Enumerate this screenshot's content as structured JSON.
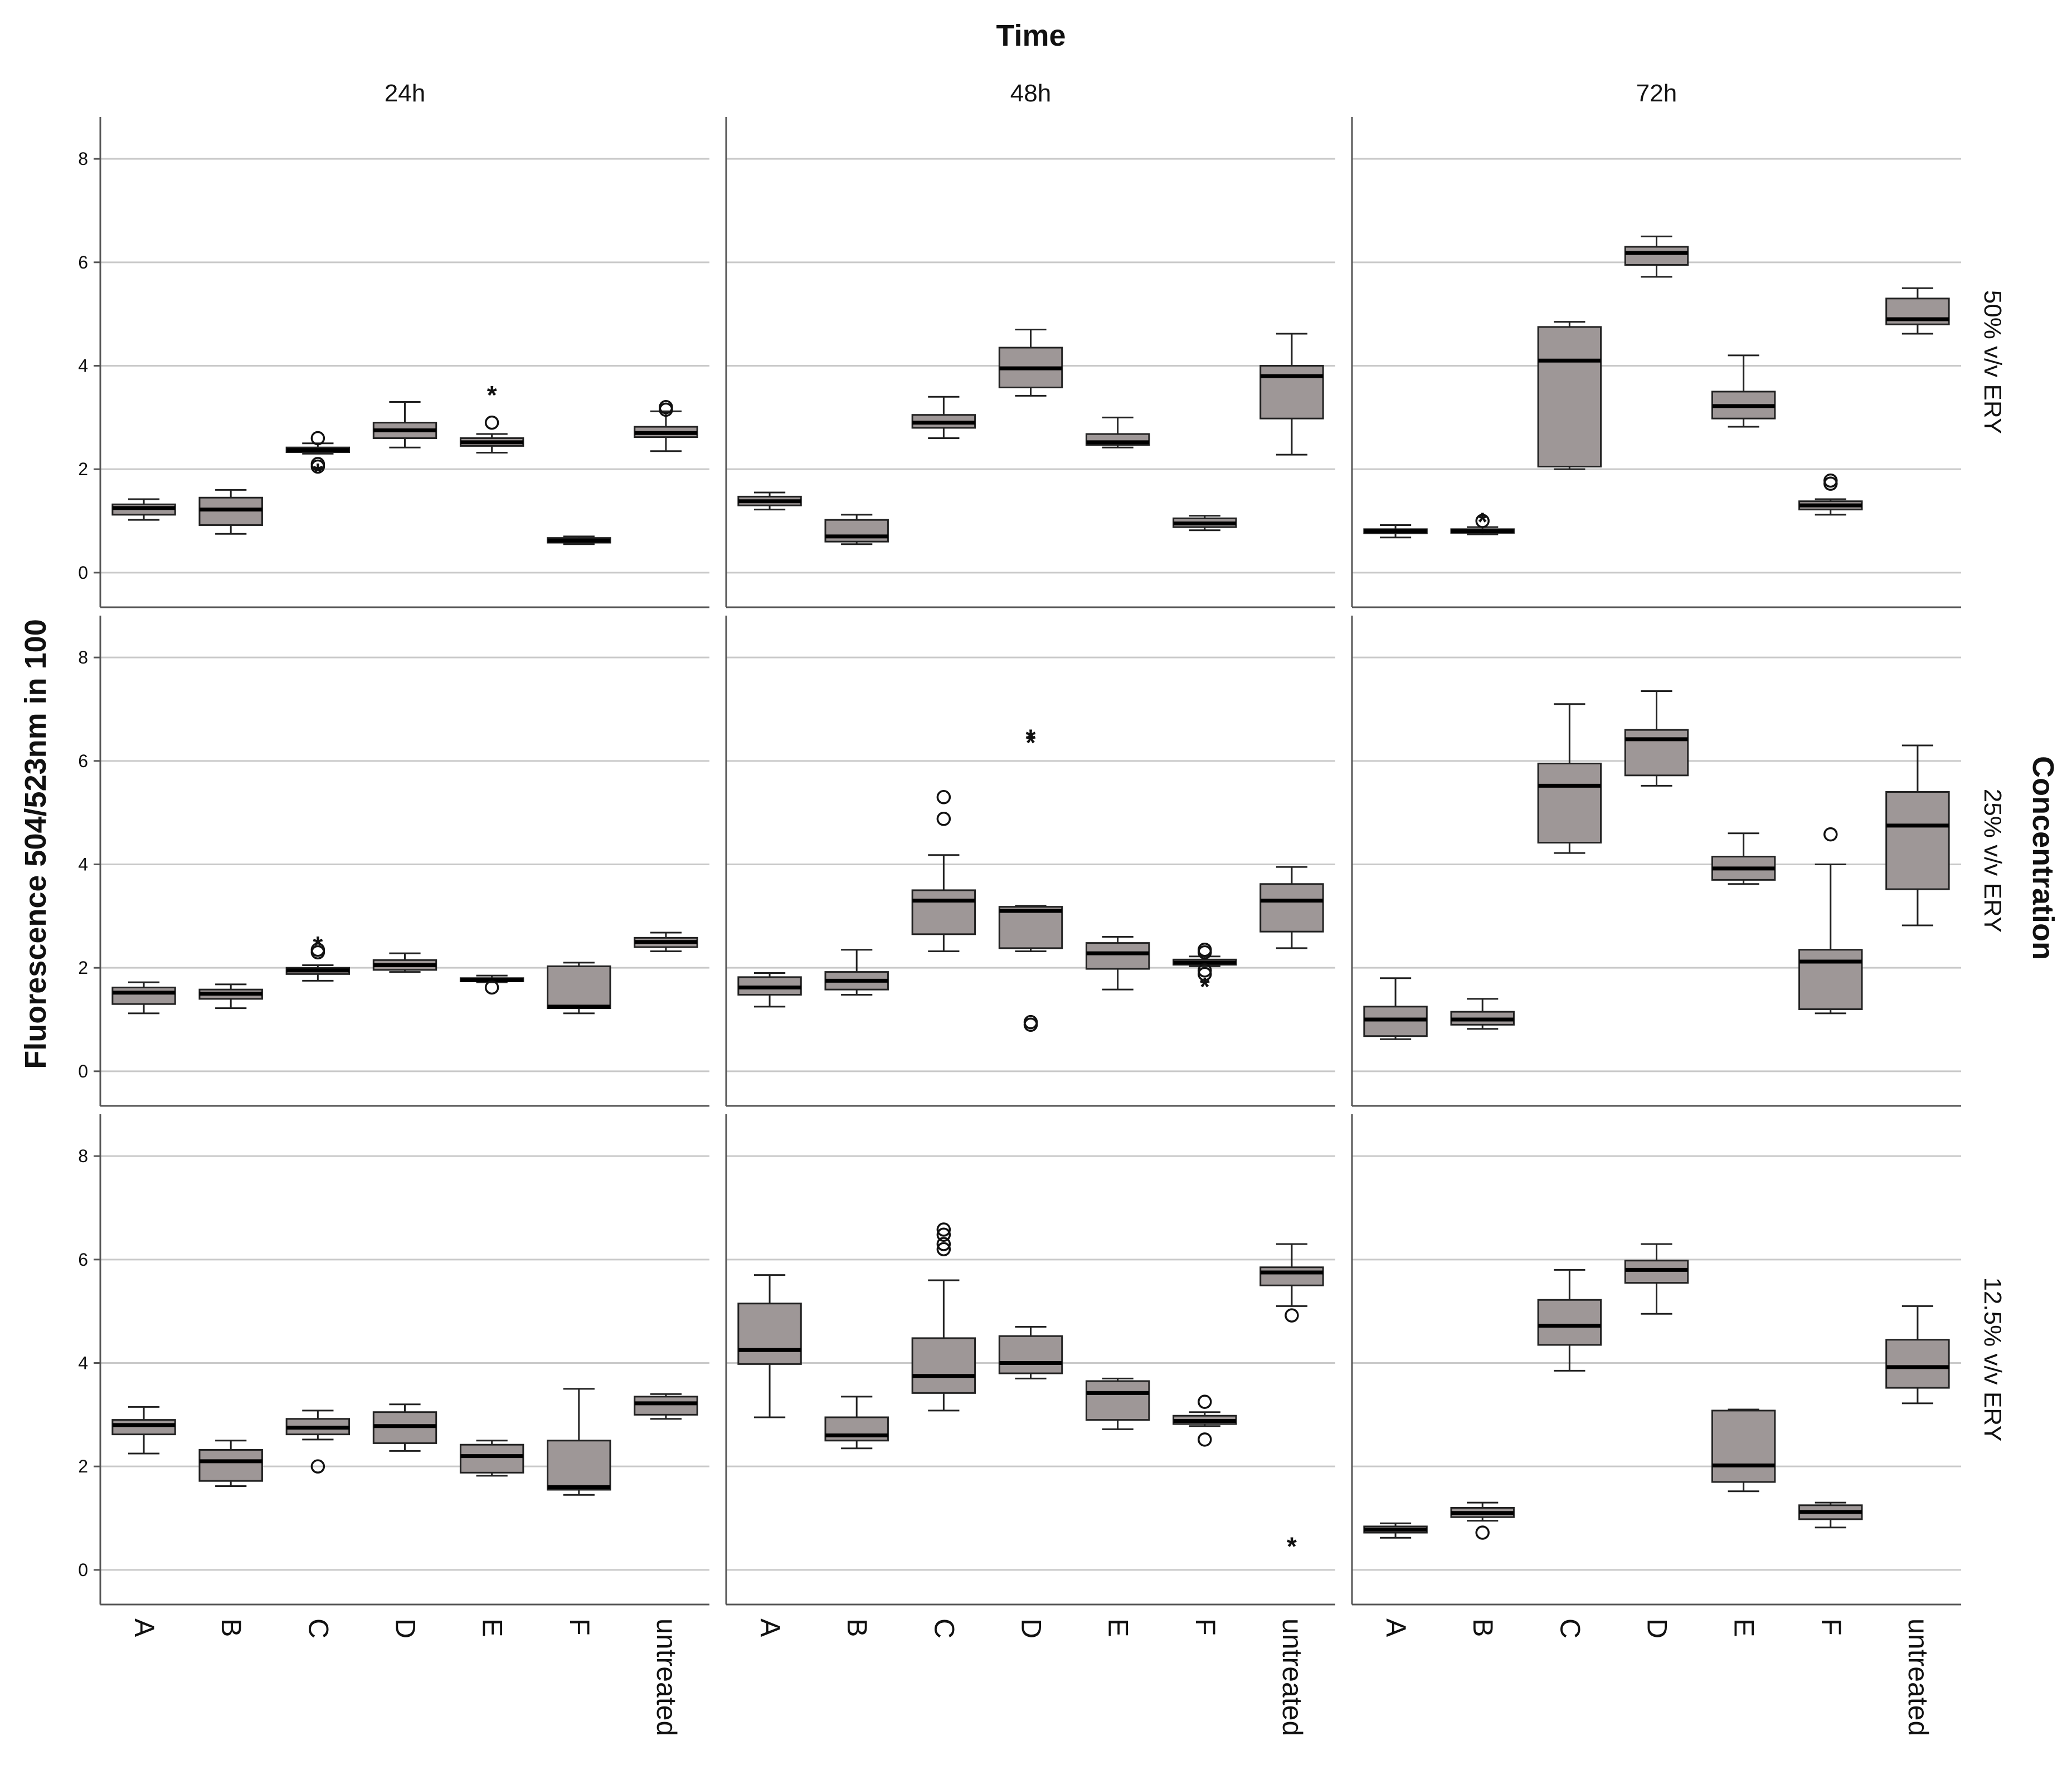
{
  "chart_data": {
    "type": "boxplot",
    "title": "Time",
    "column_facet_title": "Time",
    "row_facet_title": "Concentration",
    "ylabel": "Fluorescence 504/523nm in 100",
    "ylim": [
      -0.4,
      8.4
    ],
    "yticks": [
      0,
      2,
      4,
      6,
      8
    ],
    "grid": true,
    "columns": [
      "24h",
      "48h",
      "72h"
    ],
    "rows": [
      "50% v/v ERY",
      "25% v/v ERY",
      "12.5% v/v ERY"
    ],
    "categories": [
      "A",
      "B",
      "C",
      "D",
      "E",
      "F",
      "untreated"
    ],
    "box_color": "#9e9797",
    "panels": [
      {
        "row": "50% v/v ERY",
        "column": "24h",
        "boxes": [
          {
            "category": "A",
            "lower_whisker": 1.02,
            "q1": 1.12,
            "median": 1.25,
            "q3": 1.32,
            "upper_whisker": 1.42,
            "outliers": [],
            "extremes": []
          },
          {
            "category": "B",
            "lower_whisker": 0.75,
            "q1": 0.92,
            "median": 1.22,
            "q3": 1.45,
            "upper_whisker": 1.6,
            "outliers": [],
            "extremes": []
          },
          {
            "category": "C",
            "lower_whisker": 2.3,
            "q1": 2.33,
            "median": 2.37,
            "q3": 2.42,
            "upper_whisker": 2.5,
            "outliers": [
              2.6,
              2.1,
              2.05
            ],
            "extremes": [
              2.0
            ]
          },
          {
            "category": "D",
            "lower_whisker": 2.42,
            "q1": 2.6,
            "median": 2.75,
            "q3": 2.9,
            "upper_whisker": 3.3,
            "outliers": [],
            "extremes": []
          },
          {
            "category": "E",
            "lower_whisker": 2.32,
            "q1": 2.45,
            "median": 2.52,
            "q3": 2.6,
            "upper_whisker": 2.68,
            "outliers": [
              2.9
            ],
            "extremes": [
              3.5
            ]
          },
          {
            "category": "F",
            "lower_whisker": 0.55,
            "q1": 0.58,
            "median": 0.62,
            "q3": 0.67,
            "upper_whisker": 0.7,
            "outliers": [],
            "extremes": []
          },
          {
            "category": "untreated",
            "lower_whisker": 2.35,
            "q1": 2.62,
            "median": 2.7,
            "q3": 2.82,
            "upper_whisker": 3.12,
            "outliers": [
              3.15,
              3.2
            ],
            "extremes": []
          }
        ]
      },
      {
        "row": "50% v/v ERY",
        "column": "48h",
        "boxes": [
          {
            "category": "A",
            "lower_whisker": 1.22,
            "q1": 1.3,
            "median": 1.38,
            "q3": 1.47,
            "upper_whisker": 1.55,
            "outliers": [],
            "extremes": []
          },
          {
            "category": "B",
            "lower_whisker": 0.55,
            "q1": 0.6,
            "median": 0.7,
            "q3": 1.02,
            "upper_whisker": 1.12,
            "outliers": [],
            "extremes": []
          },
          {
            "category": "C",
            "lower_whisker": 2.6,
            "q1": 2.8,
            "median": 2.9,
            "q3": 3.05,
            "upper_whisker": 3.4,
            "outliers": [],
            "extremes": []
          },
          {
            "category": "D",
            "lower_whisker": 3.42,
            "q1": 3.58,
            "median": 3.95,
            "q3": 4.35,
            "upper_whisker": 4.7,
            "outliers": [],
            "extremes": []
          },
          {
            "category": "E",
            "lower_whisker": 2.42,
            "q1": 2.47,
            "median": 2.52,
            "q3": 2.68,
            "upper_whisker": 3.0,
            "outliers": [],
            "extremes": []
          },
          {
            "category": "F",
            "lower_whisker": 0.82,
            "q1": 0.88,
            "median": 0.95,
            "q3": 1.05,
            "upper_whisker": 1.1,
            "outliers": [],
            "extremes": []
          },
          {
            "category": "untreated",
            "lower_whisker": 2.28,
            "q1": 2.98,
            "median": 3.8,
            "q3": 4.0,
            "upper_whisker": 4.62,
            "outliers": [],
            "extremes": []
          }
        ]
      },
      {
        "row": "50% v/v ERY",
        "column": "72h",
        "boxes": [
          {
            "category": "A",
            "lower_whisker": 0.68,
            "q1": 0.76,
            "median": 0.8,
            "q3": 0.84,
            "upper_whisker": 0.92,
            "outliers": [],
            "extremes": []
          },
          {
            "category": "B",
            "lower_whisker": 0.74,
            "q1": 0.77,
            "median": 0.8,
            "q3": 0.84,
            "upper_whisker": 0.88,
            "outliers": [
              1.0
            ],
            "extremes": [
              1.05
            ]
          },
          {
            "category": "C",
            "lower_whisker": 2.0,
            "q1": 2.05,
            "median": 4.1,
            "q3": 4.75,
            "upper_whisker": 4.85,
            "outliers": [],
            "extremes": []
          },
          {
            "category": "D",
            "lower_whisker": 5.72,
            "q1": 5.95,
            "median": 6.18,
            "q3": 6.3,
            "upper_whisker": 6.5,
            "outliers": [],
            "extremes": []
          },
          {
            "category": "E",
            "lower_whisker": 2.82,
            "q1": 2.98,
            "median": 3.22,
            "q3": 3.5,
            "upper_whisker": 4.2,
            "outliers": [],
            "extremes": []
          },
          {
            "category": "F",
            "lower_whisker": 1.12,
            "q1": 1.22,
            "median": 1.3,
            "q3": 1.38,
            "upper_whisker": 1.42,
            "outliers": [
              1.72,
              1.78
            ],
            "extremes": []
          },
          {
            "category": "untreated",
            "lower_whisker": 4.62,
            "q1": 4.8,
            "median": 4.9,
            "q3": 5.3,
            "upper_whisker": 5.5,
            "outliers": [],
            "extremes": []
          }
        ]
      },
      {
        "row": "25% v/v ERY",
        "column": "24h",
        "boxes": [
          {
            "category": "A",
            "lower_whisker": 1.12,
            "q1": 1.3,
            "median": 1.52,
            "q3": 1.62,
            "upper_whisker": 1.72,
            "outliers": [],
            "extremes": []
          },
          {
            "category": "B",
            "lower_whisker": 1.22,
            "q1": 1.4,
            "median": 1.5,
            "q3": 1.58,
            "upper_whisker": 1.68,
            "outliers": [],
            "extremes": []
          },
          {
            "category": "C",
            "lower_whisker": 1.75,
            "q1": 1.88,
            "median": 1.95,
            "q3": 2.0,
            "upper_whisker": 2.05,
            "outliers": [
              2.3,
              2.35
            ],
            "extremes": [
              2.5
            ]
          },
          {
            "category": "D",
            "lower_whisker": 1.92,
            "q1": 1.96,
            "median": 2.05,
            "q3": 2.15,
            "upper_whisker": 2.28,
            "outliers": [],
            "extremes": []
          },
          {
            "category": "E",
            "lower_whisker": 1.72,
            "q1": 1.74,
            "median": 1.76,
            "q3": 1.8,
            "upper_whisker": 1.85,
            "outliers": [
              1.62
            ],
            "extremes": []
          },
          {
            "category": "F",
            "lower_whisker": 1.12,
            "q1": 1.22,
            "median": 1.25,
            "q3": 2.03,
            "upper_whisker": 2.1,
            "outliers": [],
            "extremes": []
          },
          {
            "category": "untreated",
            "lower_whisker": 2.32,
            "q1": 2.4,
            "median": 2.5,
            "q3": 2.58,
            "upper_whisker": 2.68,
            "outliers": [],
            "extremes": []
          }
        ]
      },
      {
        "row": "25% v/v ERY",
        "column": "48h",
        "boxes": [
          {
            "category": "A",
            "lower_whisker": 1.25,
            "q1": 1.48,
            "median": 1.62,
            "q3": 1.82,
            "upper_whisker": 1.9,
            "outliers": [],
            "extremes": []
          },
          {
            "category": "B",
            "lower_whisker": 1.48,
            "q1": 1.58,
            "median": 1.75,
            "q3": 1.92,
            "upper_whisker": 2.35,
            "outliers": [],
            "extremes": []
          },
          {
            "category": "C",
            "lower_whisker": 2.32,
            "q1": 2.65,
            "median": 3.3,
            "q3": 3.5,
            "upper_whisker": 4.18,
            "outliers": [
              4.88,
              5.3
            ],
            "extremes": []
          },
          {
            "category": "D",
            "lower_whisker": 2.32,
            "q1": 2.38,
            "median": 3.1,
            "q3": 3.18,
            "upper_whisker": 3.2,
            "outliers": [
              0.9,
              0.95
            ],
            "extremes": [
              6.42,
              6.5
            ]
          },
          {
            "category": "E",
            "lower_whisker": 1.58,
            "q1": 1.98,
            "median": 2.28,
            "q3": 2.48,
            "upper_whisker": 2.6,
            "outliers": [],
            "extremes": []
          },
          {
            "category": "F",
            "lower_whisker": 2.03,
            "q1": 2.06,
            "median": 2.1,
            "q3": 2.16,
            "upper_whisker": 2.22,
            "outliers": [
              2.3,
              2.35,
              1.88,
              1.95
            ],
            "extremes": [
              1.7
            ]
          },
          {
            "category": "untreated",
            "lower_whisker": 2.38,
            "q1": 2.7,
            "median": 3.3,
            "q3": 3.62,
            "upper_whisker": 3.95,
            "outliers": [],
            "extremes": []
          }
        ]
      },
      {
        "row": "25% v/v ERY",
        "column": "72h",
        "boxes": [
          {
            "category": "A",
            "lower_whisker": 0.62,
            "q1": 0.68,
            "median": 1.0,
            "q3": 1.25,
            "upper_whisker": 1.8,
            "outliers": [],
            "extremes": []
          },
          {
            "category": "B",
            "lower_whisker": 0.82,
            "q1": 0.9,
            "median": 1.0,
            "q3": 1.15,
            "upper_whisker": 1.4,
            "outliers": [],
            "extremes": []
          },
          {
            "category": "C",
            "lower_whisker": 4.22,
            "q1": 4.42,
            "median": 5.52,
            "q3": 5.95,
            "upper_whisker": 7.1,
            "outliers": [],
            "extremes": []
          },
          {
            "category": "D",
            "lower_whisker": 5.52,
            "q1": 5.72,
            "median": 6.42,
            "q3": 6.6,
            "upper_whisker": 7.35,
            "outliers": [],
            "extremes": []
          },
          {
            "category": "E",
            "lower_whisker": 3.62,
            "q1": 3.7,
            "median": 3.92,
            "q3": 4.15,
            "upper_whisker": 4.6,
            "outliers": [],
            "extremes": []
          },
          {
            "category": "F",
            "lower_whisker": 1.12,
            "q1": 1.2,
            "median": 2.12,
            "q3": 2.35,
            "upper_whisker": 4.0,
            "outliers": [
              4.58
            ],
            "extremes": []
          },
          {
            "category": "untreated",
            "lower_whisker": 2.82,
            "q1": 3.52,
            "median": 4.75,
            "q3": 5.4,
            "upper_whisker": 6.3,
            "outliers": [],
            "extremes": []
          }
        ]
      },
      {
        "row": "12.5% v/v ERY",
        "column": "24h",
        "boxes": [
          {
            "category": "A",
            "lower_whisker": 2.25,
            "q1": 2.62,
            "median": 2.8,
            "q3": 2.9,
            "upper_whisker": 3.15,
            "outliers": [],
            "extremes": []
          },
          {
            "category": "B",
            "lower_whisker": 1.62,
            "q1": 1.72,
            "median": 2.1,
            "q3": 2.32,
            "upper_whisker": 2.5,
            "outliers": [],
            "extremes": []
          },
          {
            "category": "C",
            "lower_whisker": 2.52,
            "q1": 2.62,
            "median": 2.75,
            "q3": 2.92,
            "upper_whisker": 3.08,
            "outliers": [
              2.0
            ],
            "extremes": []
          },
          {
            "category": "D",
            "lower_whisker": 2.3,
            "q1": 2.45,
            "median": 2.78,
            "q3": 3.05,
            "upper_whisker": 3.2,
            "outliers": [],
            "extremes": []
          },
          {
            "category": "E",
            "lower_whisker": 1.82,
            "q1": 1.88,
            "median": 2.2,
            "q3": 2.42,
            "upper_whisker": 2.5,
            "outliers": [],
            "extremes": []
          },
          {
            "category": "F",
            "lower_whisker": 1.45,
            "q1": 1.55,
            "median": 1.6,
            "q3": 2.5,
            "upper_whisker": 3.5,
            "outliers": [],
            "extremes": []
          },
          {
            "category": "untreated",
            "lower_whisker": 2.92,
            "q1": 3.0,
            "median": 3.22,
            "q3": 3.35,
            "upper_whisker": 3.4,
            "outliers": [],
            "extremes": []
          }
        ]
      },
      {
        "row": "12.5% v/v ERY",
        "column": "48h",
        "boxes": [
          {
            "category": "A",
            "lower_whisker": 2.95,
            "q1": 3.98,
            "median": 4.25,
            "q3": 5.15,
            "upper_whisker": 5.7,
            "outliers": [],
            "extremes": []
          },
          {
            "category": "B",
            "lower_whisker": 2.35,
            "q1": 2.5,
            "median": 2.6,
            "q3": 2.95,
            "upper_whisker": 3.35,
            "outliers": [],
            "extremes": []
          },
          {
            "category": "C",
            "lower_whisker": 3.08,
            "q1": 3.42,
            "median": 3.75,
            "q3": 4.48,
            "upper_whisker": 5.6,
            "outliers": [
              6.2,
              6.3,
              6.48,
              6.58
            ],
            "extremes": []
          },
          {
            "category": "D",
            "lower_whisker": 3.7,
            "q1": 3.8,
            "median": 4.0,
            "q3": 4.52,
            "upper_whisker": 4.7,
            "outliers": [],
            "extremes": []
          },
          {
            "category": "E",
            "lower_whisker": 2.72,
            "q1": 2.9,
            "median": 3.42,
            "q3": 3.65,
            "upper_whisker": 3.7,
            "outliers": [],
            "extremes": []
          },
          {
            "category": "F",
            "lower_whisker": 2.78,
            "q1": 2.82,
            "median": 2.88,
            "q3": 2.98,
            "upper_whisker": 3.05,
            "outliers": [
              3.25,
              2.52
            ],
            "extremes": []
          },
          {
            "category": "untreated",
            "lower_whisker": 5.1,
            "q1": 5.5,
            "median": 5.75,
            "q3": 5.85,
            "upper_whisker": 6.3,
            "outliers": [
              4.92
            ],
            "extremes": [
              0.52
            ]
          }
        ]
      },
      {
        "row": "12.5% v/v ERY",
        "column": "72h",
        "boxes": [
          {
            "category": "A",
            "lower_whisker": 0.62,
            "q1": 0.72,
            "median": 0.78,
            "q3": 0.84,
            "upper_whisker": 0.9,
            "outliers": [],
            "extremes": []
          },
          {
            "category": "B",
            "lower_whisker": 0.95,
            "q1": 1.02,
            "median": 1.1,
            "q3": 1.2,
            "upper_whisker": 1.3,
            "outliers": [
              0.72
            ],
            "extremes": []
          },
          {
            "category": "C",
            "lower_whisker": 3.85,
            "q1": 4.35,
            "median": 4.72,
            "q3": 5.22,
            "upper_whisker": 5.8,
            "outliers": [],
            "extremes": []
          },
          {
            "category": "D",
            "lower_whisker": 4.95,
            "q1": 5.55,
            "median": 5.8,
            "q3": 5.98,
            "upper_whisker": 6.3,
            "outliers": [],
            "extremes": []
          },
          {
            "category": "E",
            "lower_whisker": 1.52,
            "q1": 1.7,
            "median": 2.02,
            "q3": 3.08,
            "upper_whisker": 3.1,
            "outliers": [],
            "extremes": []
          },
          {
            "category": "F",
            "lower_whisker": 0.82,
            "q1": 0.98,
            "median": 1.12,
            "q3": 1.25,
            "upper_whisker": 1.3,
            "outliers": [],
            "extremes": []
          },
          {
            "category": "untreated",
            "lower_whisker": 3.22,
            "q1": 3.52,
            "median": 3.92,
            "q3": 4.45,
            "upper_whisker": 5.1,
            "outliers": [],
            "extremes": []
          }
        ]
      }
    ]
  }
}
